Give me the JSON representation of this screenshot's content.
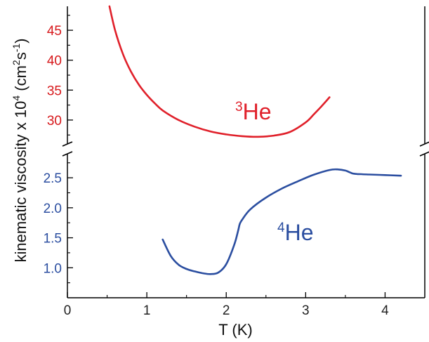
{
  "chart_data": {
    "type": "line",
    "title": "",
    "xlabel": "T (K)",
    "ylabel": {
      "text_main": "kinematic viscosity x 10",
      "exp": "4",
      "open": " (cm",
      "sq": "2",
      "mid": "s",
      "neg": "-1",
      "close": ")"
    },
    "broken_y_axis": true,
    "xlim": [
      0,
      4.5
    ],
    "x_ticks": [
      0,
      1,
      2,
      3,
      4
    ],
    "x_tick_labels": [
      "0",
      "1",
      "2",
      "3",
      "4"
    ],
    "upper_panel": {
      "ylim": [
        26,
        49
      ],
      "ticks": [
        30,
        35,
        40,
        45
      ],
      "tick_labels": [
        "30",
        "35",
        "40",
        "45"
      ],
      "color": "#d7191c"
    },
    "lower_panel": {
      "ylim": [
        0.5,
        2.9
      ],
      "ticks": [
        1.0,
        1.5,
        2.0,
        2.5
      ],
      "tick_labels": [
        "1.0",
        "1.5",
        "2.0",
        "2.5"
      ],
      "color": "#2b4ea0"
    },
    "series": [
      {
        "name_sup": "3",
        "name_main": "He",
        "panel": "upper",
        "color": "#e0202a",
        "x": [
          0.53,
          0.6,
          0.7,
          0.8,
          0.9,
          1.0,
          1.1,
          1.2,
          1.4,
          1.6,
          1.8,
          2.0,
          2.2,
          2.4,
          2.6,
          2.8,
          3.0,
          3.1,
          3.2,
          3.3
        ],
        "y": [
          49.0,
          45.0,
          41.0,
          38.1,
          35.9,
          34.2,
          32.8,
          31.6,
          30.0,
          28.9,
          28.1,
          27.6,
          27.3,
          27.2,
          27.4,
          28.0,
          29.6,
          30.9,
          32.3,
          33.8
        ]
      },
      {
        "name_sup": "4",
        "name_main": "He",
        "panel": "lower",
        "color": "#2b4ea0",
        "x": [
          1.2,
          1.3,
          1.4,
          1.5,
          1.6,
          1.7,
          1.8,
          1.9,
          2.0,
          2.1,
          2.15,
          2.17,
          2.2,
          2.3,
          2.5,
          2.7,
          2.9,
          3.1,
          3.3,
          3.4,
          3.5,
          3.6,
          3.7,
          3.8,
          4.0,
          4.2
        ],
        "y": [
          1.47,
          1.2,
          1.05,
          0.98,
          0.94,
          0.91,
          0.895,
          0.92,
          1.06,
          1.38,
          1.62,
          1.73,
          1.8,
          1.97,
          2.17,
          2.32,
          2.44,
          2.55,
          2.63,
          2.64,
          2.62,
          2.57,
          2.56,
          2.555,
          2.545,
          2.535
        ]
      }
    ]
  }
}
